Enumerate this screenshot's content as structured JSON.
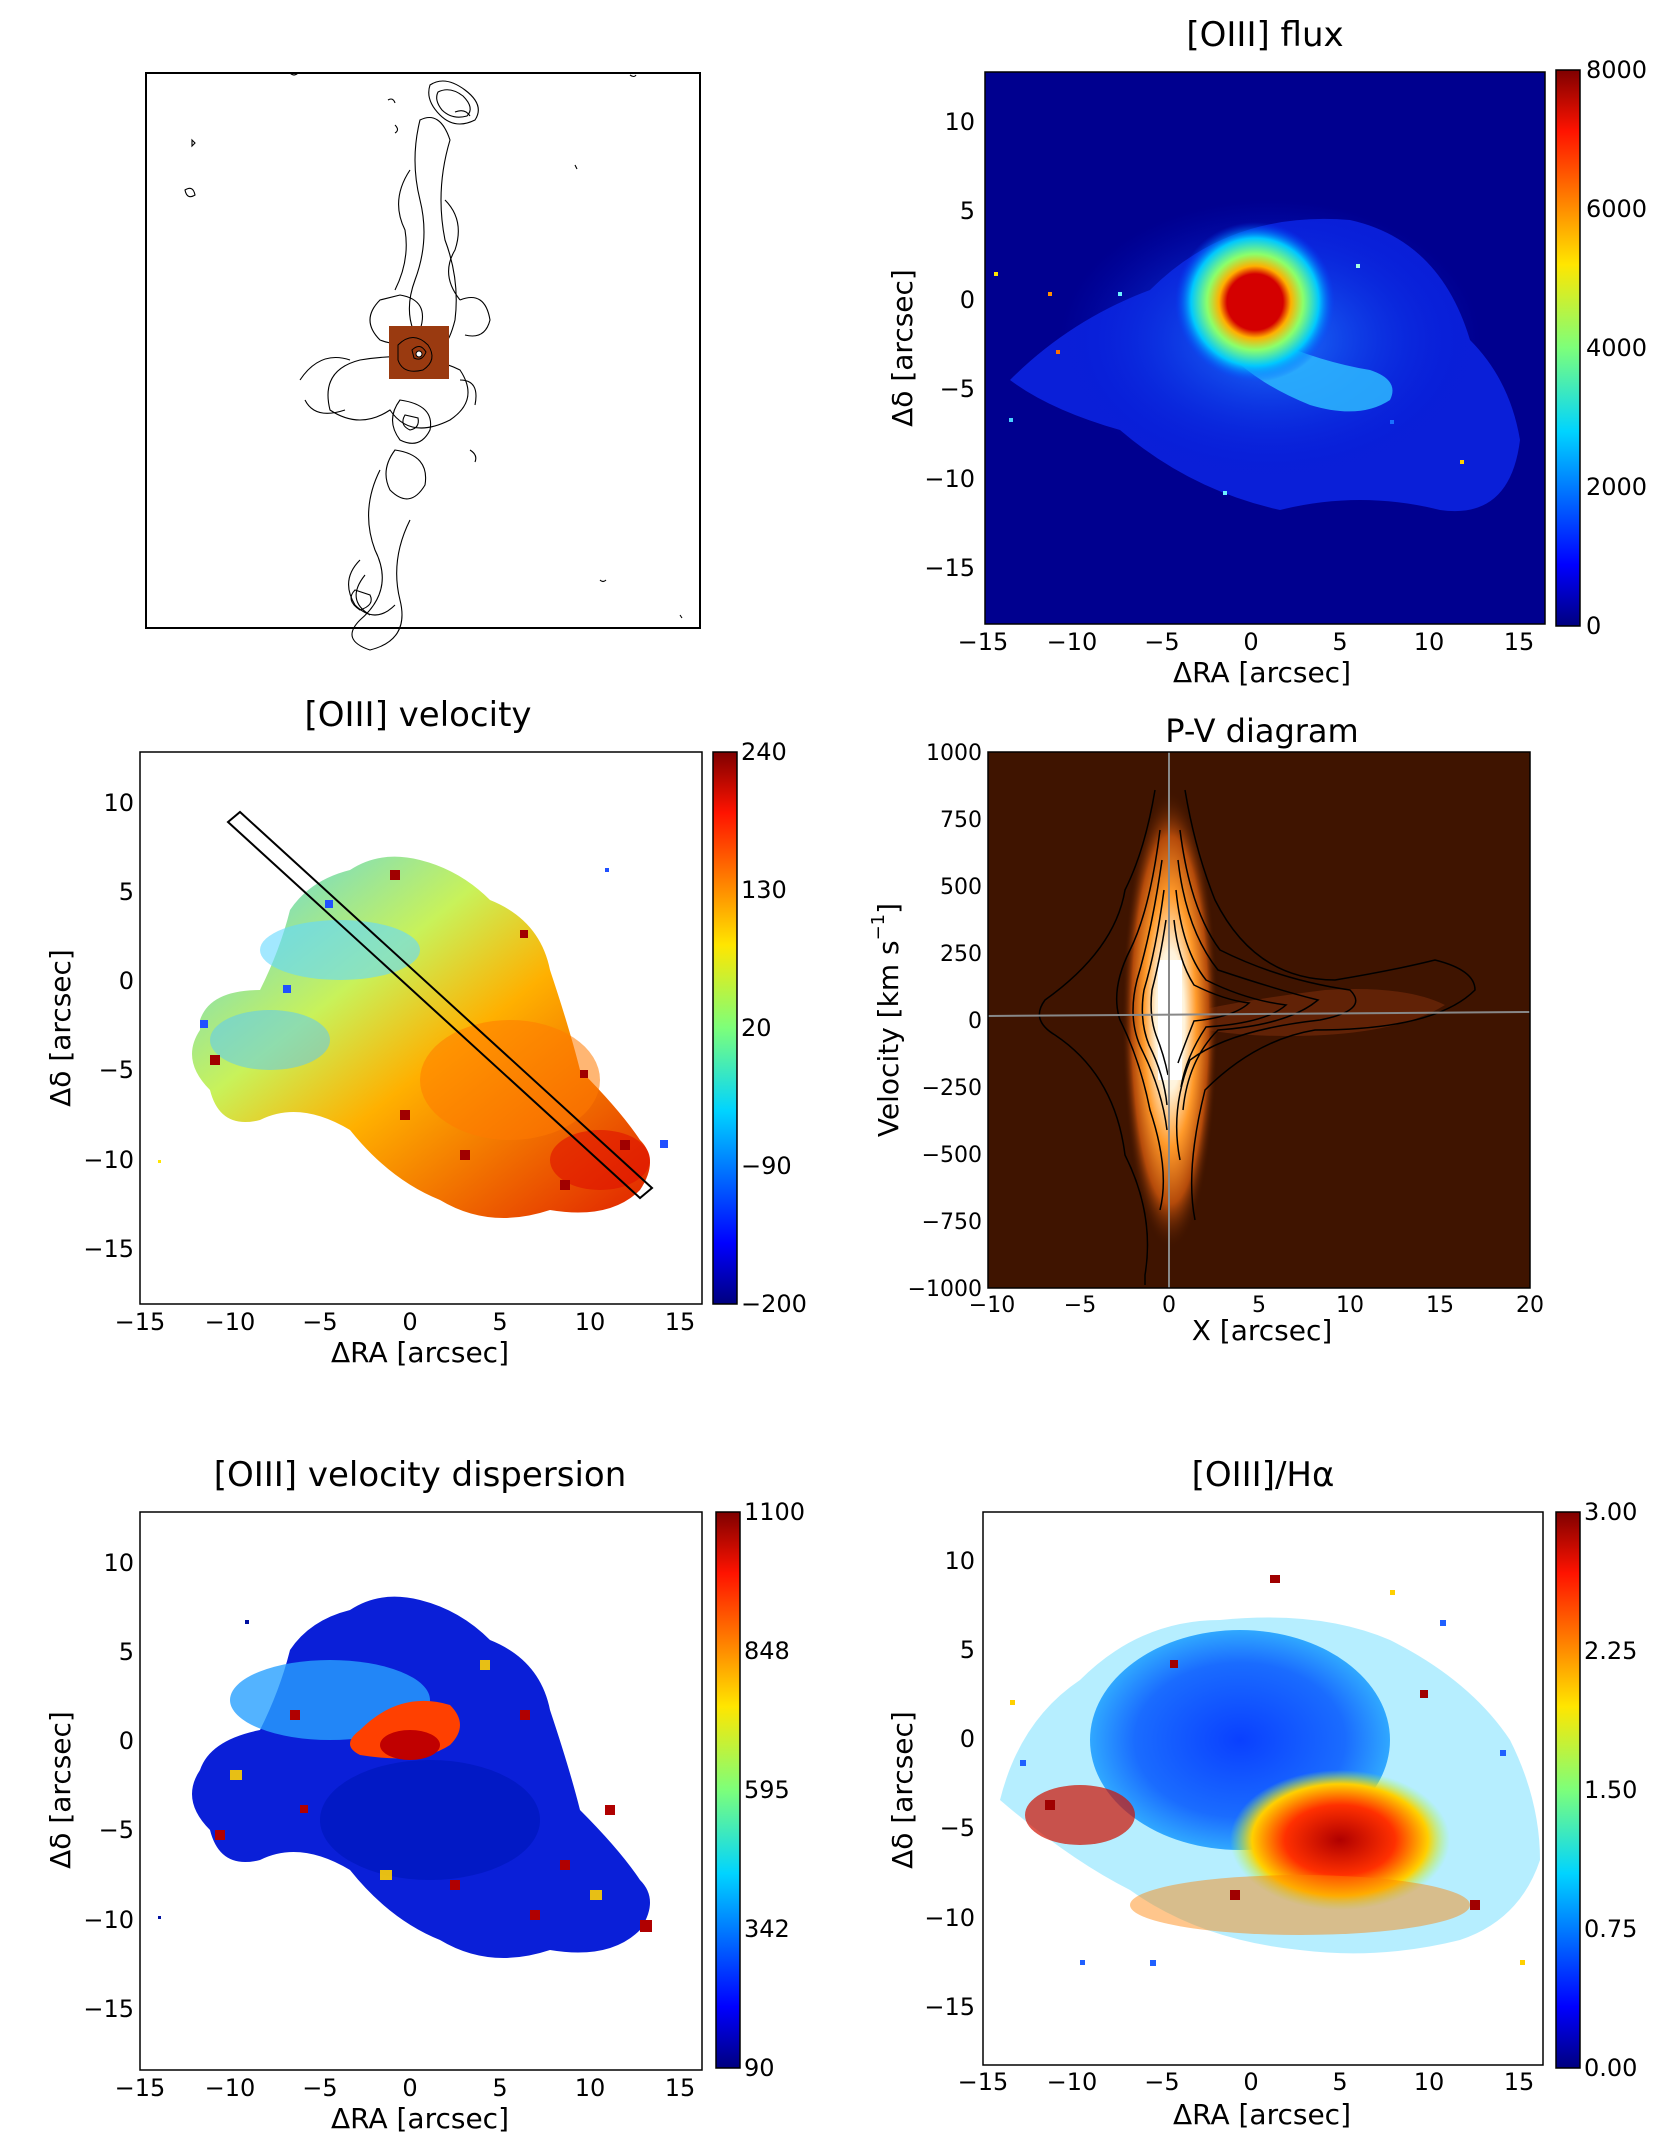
{
  "panels": {
    "contour_map": {},
    "flux": {
      "title": "[OIII] flux",
      "xlabel": "ΔRA [arcsec]",
      "ylabel": "Δδ [arcsec]",
      "xticks": [
        "−15",
        "−10",
        "−5",
        "0",
        "5",
        "10",
        "15"
      ],
      "yticks": [
        "10",
        "5",
        "0",
        "−5",
        "−10",
        "−15"
      ],
      "cbar": [
        "8000",
        "6000",
        "4000",
        "2000",
        "0"
      ]
    },
    "velocity": {
      "title": "[OIII] velocity",
      "xlabel": "ΔRA [arcsec]",
      "ylabel": "Δδ [arcsec]",
      "xticks": [
        "−15",
        "−10",
        "−5",
        "0",
        "5",
        "10",
        "15"
      ],
      "yticks": [
        "10",
        "5",
        "0",
        "−5",
        "−10",
        "−15"
      ],
      "cbar": [
        "240",
        "130",
        "20",
        "−90",
        "−200"
      ]
    },
    "pv": {
      "title": "P-V diagram",
      "xlabel": "X [arcsec]",
      "ylabel": "Velocity [km s",
      "ylabel_sup": "−1",
      "ylabel_end": "]",
      "xticks": [
        "−10",
        "−5",
        "0",
        "5",
        "10",
        "15",
        "20"
      ],
      "yticks": [
        "1000",
        "750",
        "500",
        "250",
        "0",
        "−250",
        "−500",
        "−750",
        "−1000"
      ]
    },
    "dispersion": {
      "title": "[OIII] velocity dispersion",
      "xlabel": "ΔRA [arcsec]",
      "ylabel": "Δδ [arcsec]",
      "xticks": [
        "−15",
        "−10",
        "−5",
        "0",
        "5",
        "10",
        "15"
      ],
      "yticks": [
        "10",
        "5",
        "0",
        "−5",
        "−10",
        "−15"
      ],
      "cbar": [
        "1100",
        "848",
        "595",
        "342",
        "90"
      ]
    },
    "ratio": {
      "title": "[OIII]/Hα",
      "xlabel": "ΔRA [arcsec]",
      "ylabel": "Δδ [arcsec]",
      "xticks": [
        "−15",
        "−10",
        "−5",
        "0",
        "5",
        "10",
        "15"
      ],
      "yticks": [
        "10",
        "5",
        "0",
        "−5",
        "−10",
        "−15"
      ],
      "cbar": [
        "3.00",
        "2.25",
        "1.50",
        "0.75",
        "0.00"
      ]
    }
  }
}
